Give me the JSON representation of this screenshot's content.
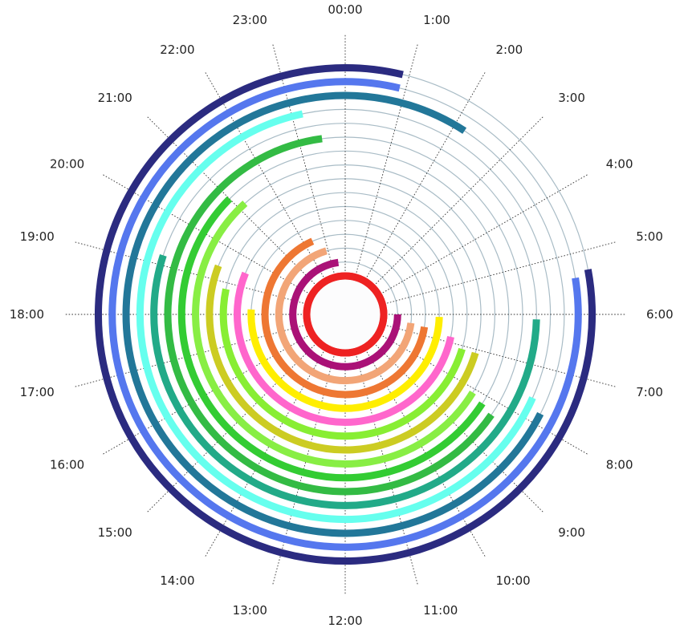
{
  "chart_data": {
    "type": "radial-bar",
    "angular_axis": {
      "unit": "hour of day",
      "start": 0,
      "end": 24,
      "direction": "clockwise",
      "origin": "top",
      "tick_labels": [
        "00:00",
        "1:00",
        "2:00",
        "3:00",
        "4:00",
        "5:00",
        "6:00",
        "7:00",
        "8:00",
        "9:00",
        "10:00",
        "11:00",
        "12:00",
        "13:00",
        "14:00",
        "15:00",
        "16:00",
        "17:00",
        "18:00",
        "19:00",
        "20:00",
        "21:00",
        "22:00",
        "23:00"
      ]
    },
    "grid": true,
    "grid_color": "#a9bcc6",
    "legend": "none",
    "series": [
      {
        "ring": 0,
        "start_hour": 0,
        "end_hour": 24,
        "color": "#ee2222"
      },
      {
        "ring": 1,
        "start_hour": 6,
        "end_hour": 23.5,
        "color": "#aa1177"
      },
      {
        "ring": 2,
        "start_hour": 6.5,
        "end_hour": 22.9,
        "color": "#f2a577"
      },
      {
        "ring": 3,
        "start_hour": 6.6,
        "end_hour": 22.4,
        "color": "#ee7733"
      },
      {
        "ring": 4,
        "start_hour": 6.1,
        "end_hour": 18.2,
        "color": "#ffee00"
      },
      {
        "ring": 5,
        "start_hour": 6.8,
        "end_hour": 19.5,
        "color": "#ff66cc"
      },
      {
        "ring": 6,
        "start_hour": 7.1,
        "end_hour": 18.8,
        "color": "#88ee33"
      },
      {
        "ring": 7,
        "start_hour": 7.1,
        "end_hour": 19.4,
        "color": "#cccc22"
      },
      {
        "ring": 8,
        "start_hour": 8.1,
        "end_hour": 21.2,
        "color": "#88ee44"
      },
      {
        "ring": 9,
        "start_hour": 8.2,
        "end_hour": 21.0,
        "color": "#33cc33"
      },
      {
        "ring": 10,
        "start_hour": 8.3,
        "end_hour": 23.5,
        "color": "#33bb44"
      },
      {
        "ring": 11,
        "start_hour": 6.1,
        "end_hour": 19.2,
        "color": "#22aa88"
      },
      {
        "ring": 12,
        "start_hour": 7.6,
        "end_hour": 23.2,
        "color": "#66ffee"
      },
      {
        "ring": 13,
        "start_hour": 7.8,
        "end_hour": 2.2,
        "color": "#227799"
      },
      {
        "ring": 14,
        "start_hour": 5.4,
        "end_hour": 0.9,
        "color": "#5577ee"
      },
      {
        "ring": 15,
        "start_hour": 5.3,
        "end_hour": 0.9,
        "color": "#2b2b80"
      }
    ]
  }
}
